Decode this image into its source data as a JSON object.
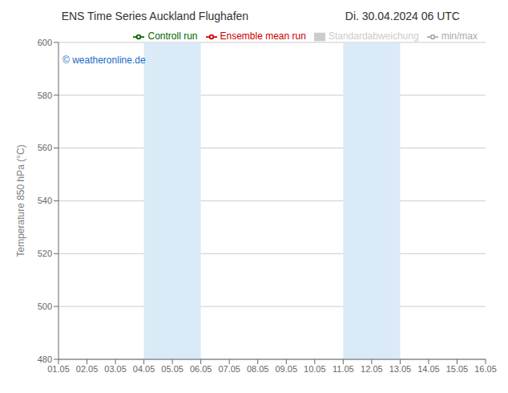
{
  "chart_data": {
    "type": "line",
    "title": "ENS Time Series Auckland Flughafen",
    "subtitle": "Di. 30.04.2024 06 UTC",
    "y_label": "Temperature 850 hPa (°C)",
    "categories": [
      "01.05",
      "02.05",
      "03.05",
      "04.05",
      "05.05",
      "06.05",
      "07.05",
      "08.05",
      "09.05",
      "10.05",
      "11.05",
      "12.05",
      "13.05",
      "14.05",
      "15.05",
      "16.05"
    ],
    "ylim": [
      480,
      600
    ],
    "yticks": [
      480,
      500,
      520,
      540,
      560,
      580,
      600
    ],
    "grid": true,
    "legend": "upper right",
    "annotations": [
      {
        "text": "© weatheronline.de",
        "color": "#1a6abf"
      }
    ],
    "shaded_bands": [
      {
        "from": "04.05",
        "to": "06.05",
        "color": "#daeaf6"
      },
      {
        "from": "11.05",
        "to": "13.05",
        "color": "#daeaf6"
      }
    ],
    "series": [
      {
        "name": "min/max",
        "color": "#aaaaaa",
        "type": "line",
        "values": [
          null,
          null,
          null,
          null,
          null,
          null,
          null,
          null,
          null,
          null,
          null,
          null,
          null,
          null,
          null,
          null
        ]
      },
      {
        "name": "Standardabweichung",
        "color": "#cccccc",
        "type": "area",
        "values": [
          null,
          null,
          null,
          null,
          null,
          null,
          null,
          null,
          null,
          null,
          null,
          null,
          null,
          null,
          null,
          null
        ]
      },
      {
        "name": "Ensemble mean run",
        "color": "#cc0000",
        "type": "line",
        "values": [
          null,
          null,
          null,
          null,
          null,
          null,
          null,
          null,
          null,
          null,
          null,
          null,
          null,
          null,
          null,
          null
        ]
      },
      {
        "name": "Controll run",
        "color": "#006600",
        "type": "line",
        "values": [
          null,
          null,
          null,
          null,
          null,
          null,
          null,
          null,
          null,
          null,
          null,
          null,
          null,
          null,
          null,
          null
        ]
      }
    ]
  }
}
